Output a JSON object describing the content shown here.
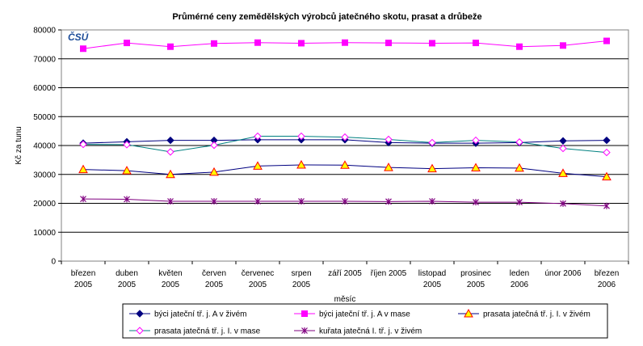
{
  "chart_data": {
    "type": "line",
    "title": "Průmérné ceny zemědělských výrobců jatečného skotu, prasat a drůbeže",
    "xlabel": "měsíc",
    "ylabel": "Kč za tunu",
    "ylim": [
      0,
      80000
    ],
    "yticks": [
      0,
      10000,
      20000,
      30000,
      40000,
      50000,
      60000,
      70000,
      80000
    ],
    "grid": true,
    "legend_position": "bottom",
    "logo_text": "ČSÚ",
    "categories": [
      [
        "březen",
        "2005"
      ],
      [
        "duben",
        "2005"
      ],
      [
        "květen",
        "2005"
      ],
      [
        "červen",
        "2005"
      ],
      [
        "červenec",
        "2005"
      ],
      [
        "srpen",
        "2005"
      ],
      [
        "září 2005",
        ""
      ],
      [
        "říjen 2005",
        ""
      ],
      [
        "listopad",
        "2005"
      ],
      [
        "prosinec",
        "2005"
      ],
      [
        "leden",
        "2006"
      ],
      [
        "únor 2006",
        ""
      ],
      [
        "březen",
        "2006"
      ]
    ],
    "series": [
      {
        "name": "býci jateční tř. j. A v živém",
        "color": "#000080",
        "marker": "diamond",
        "values": [
          40800,
          41300,
          41800,
          41800,
          42000,
          42000,
          42000,
          41000,
          40800,
          40800,
          41000,
          41600,
          41800
        ]
      },
      {
        "name": "býci jateční tř. j. A v mase",
        "color": "#ff00ff",
        "marker": "square",
        "values": [
          73500,
          75500,
          74200,
          75300,
          75600,
          75400,
          75600,
          75500,
          75400,
          75500,
          74200,
          74600,
          76200
        ]
      },
      {
        "name": "prasata jatečná tř. j. I. v živém",
        "color": "#000080",
        "marker": "triangle",
        "marker_fill": "#ffff00",
        "marker_stroke": "#ff0000",
        "values": [
          31700,
          31300,
          30000,
          30800,
          32900,
          33300,
          33200,
          32400,
          32000,
          32300,
          32200,
          30400,
          29200
        ]
      },
      {
        "name": "prasata jatečná tř. j. I. v mase",
        "color": "#008080",
        "marker": "diamond-open",
        "marker_stroke": "#ff00ff",
        "values": [
          40400,
          40300,
          37800,
          40100,
          43200,
          43200,
          42900,
          42100,
          41000,
          41800,
          41200,
          39000,
          37600
        ]
      },
      {
        "name": "kuřata jatečná I. tř. j. v živém",
        "color": "#800080",
        "marker": "star",
        "values": [
          21500,
          21400,
          20700,
          20700,
          20700,
          20700,
          20700,
          20600,
          20700,
          20400,
          20400,
          19900,
          19100
        ]
      }
    ]
  }
}
